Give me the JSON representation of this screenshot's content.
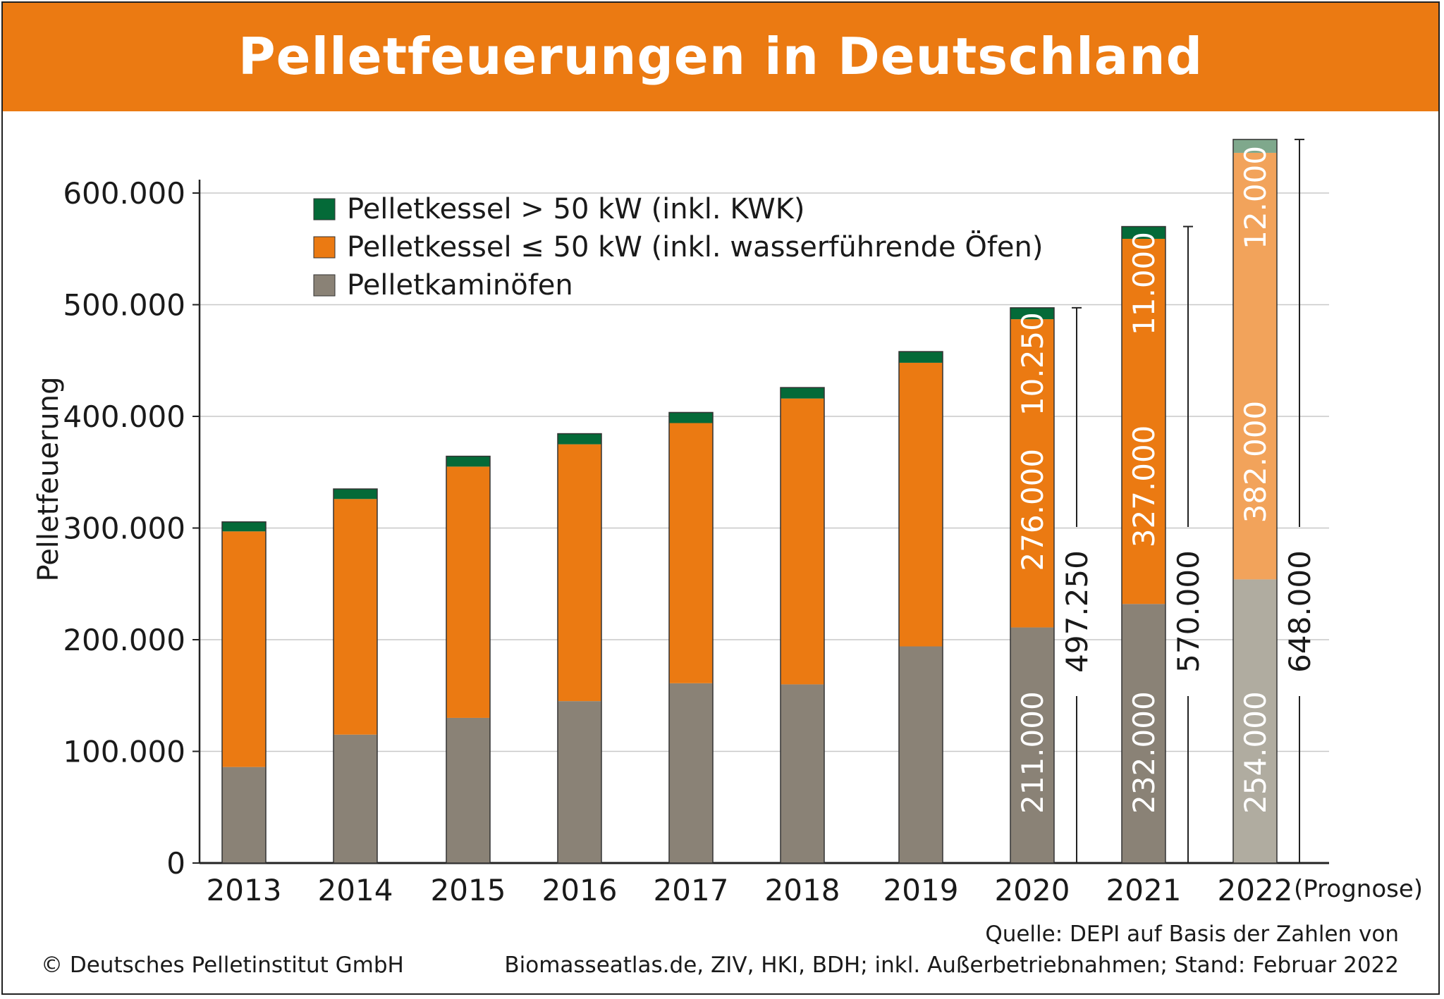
{
  "title": "Pelletfeuerungen in Deutschland",
  "colors": {
    "title_bg": "#EB7A12",
    "kwk": "#046A38",
    "kessel": "#EB7A12",
    "ofen": "#8A8276",
    "kwk_prognose": "#7FA88C",
    "kessel_prognose": "#F2A35B",
    "ofen_prognose": "#B0ACA0"
  },
  "chart_data": {
    "type": "bar",
    "stacked": true,
    "title": "Pelletfeuerungen in Deutschland",
    "xlabel": "",
    "ylabel": "Pelletfeuerung",
    "ylim": [
      0,
      650000
    ],
    "yticks": [
      "0",
      "100.000",
      "200.000",
      "300.000",
      "400.000",
      "500.000",
      "600.000"
    ],
    "grid": true,
    "legend_position": "top-left",
    "categories": [
      "2013",
      "2014",
      "2015",
      "2016",
      "2017",
      "2018",
      "2019",
      "2020",
      "2021",
      "2022"
    ],
    "category_note": "(Prognose)",
    "series": [
      {
        "name": "Pelletkaminöfen",
        "values": [
          86000,
          115000,
          130000,
          145000,
          161000,
          160000,
          194000,
          211000,
          232000,
          254000
        ]
      },
      {
        "name": "Pelletkessel ≤ 50 kW (inkl. wasserführende Öfen)",
        "values": [
          211000,
          211000,
          225000,
          230000,
          233000,
          256000,
          254000,
          276000,
          327000,
          382000
        ]
      },
      {
        "name": "Pelletkessel > 50 kW (inkl. KWK)",
        "values": [
          8500,
          9000,
          9300,
          9500,
          9500,
          9800,
          10000,
          10250,
          11000,
          12000
        ]
      }
    ],
    "data_labels": {
      "2020": {
        "ofen": "211.000",
        "kessel": "276.000",
        "kwk": "10.250",
        "total": "497.250"
      },
      "2021": {
        "ofen": "232.000",
        "kessel": "327.000",
        "kwk": "11.000",
        "total": "570.000"
      },
      "2022": {
        "ofen": "254.000",
        "kessel": "382.000",
        "kwk": "12.000",
        "total": "648.000"
      }
    }
  },
  "legend": [
    {
      "label": "Pelletkessel > 50 kW (inkl. KWK)",
      "color": "#046A38"
    },
    {
      "label": "Pelletkessel ≤ 50 kW (inkl. wasserführende Öfen)",
      "color": "#EB7A12"
    },
    {
      "label": "Pelletkaminöfen",
      "color": "#8A8276"
    }
  ],
  "footer": {
    "copyright": "© Deutsches Pelletinstitut GmbH",
    "source_line1": "Quelle: DEPI auf Basis der Zahlen von",
    "source_line2": "Biomasseatlas.de, ZIV, HKI, BDH; inkl. Außerbetriebnahmen; Stand: Februar 2022"
  }
}
